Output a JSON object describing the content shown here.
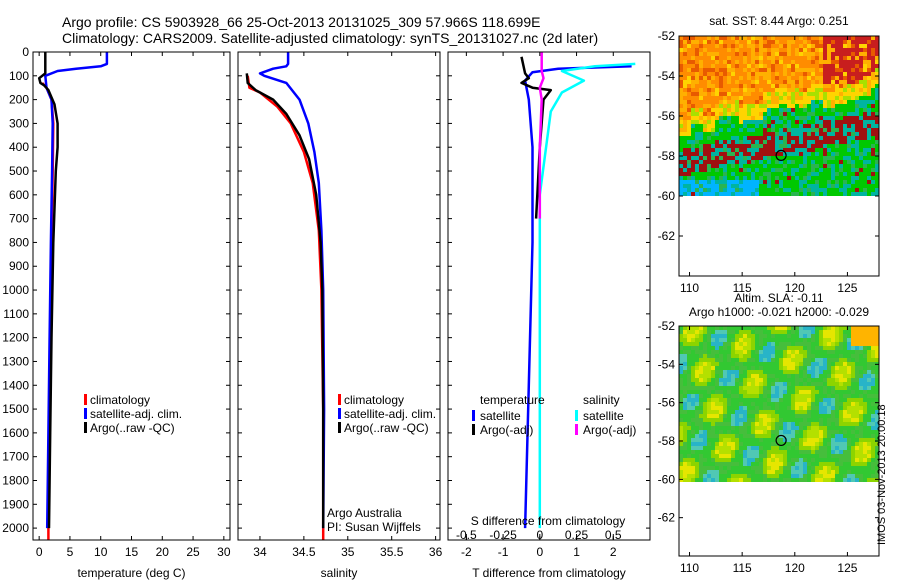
{
  "header": {
    "line1": "Argo profile: CS 5903928_66 25-Oct-2013 20131025_309 57.966S 118.699E",
    "line2": "Climatology: CARS2009. Satellite-adjusted climatology: synTS_20131027.nc (2d later)"
  },
  "colors": {
    "climatology": "#ff0000",
    "satellite_adj": "#0000ff",
    "argo": "#000000",
    "cyan": "#00ffff",
    "magenta": "#ff00ff"
  },
  "chart_data": [
    {
      "type": "line",
      "panel": "temperature",
      "xlabel": "temperature (deg C)",
      "x_ticks": [
        0,
        5,
        10,
        15,
        20,
        25,
        30
      ],
      "xlim": [
        -1,
        31
      ],
      "y_ticks": [
        0,
        100,
        200,
        300,
        400,
        500,
        600,
        700,
        800,
        900,
        1000,
        1100,
        1200,
        1300,
        1400,
        1500,
        1600,
        1700,
        1800,
        1900,
        2000
      ],
      "ylim": [
        2050,
        0
      ],
      "legend": [
        "climatology",
        "satellite-adj. clim.",
        "Argo(..raw -QC)"
      ],
      "series": [
        {
          "name": "climatology",
          "color": "#ff0000",
          "points": [
            [
              0.5,
              130
            ],
            [
              1.2,
              150
            ],
            [
              2,
              200
            ],
            [
              2.3,
              300
            ],
            [
              2.2,
              500
            ],
            [
              2.0,
              800
            ],
            [
              1.8,
              1200
            ],
            [
              1.6,
              1600
            ],
            [
              1.5,
              2000
            ],
            [
              1.5,
              2050
            ]
          ]
        },
        {
          "name": "satellite-adj. clim.",
          "color": "#0000ff",
          "points": [
            [
              11,
              0
            ],
            [
              11,
              50
            ],
            [
              10,
              60
            ],
            [
              6,
              70
            ],
            [
              3,
              80
            ],
            [
              1,
              100
            ],
            [
              1.2,
              150
            ],
            [
              2,
              200
            ],
            [
              2.2,
              300
            ],
            [
              2.1,
              500
            ],
            [
              1.9,
              800
            ],
            [
              1.7,
              1200
            ],
            [
              1.5,
              1600
            ],
            [
              1.3,
              2000
            ]
          ]
        },
        {
          "name": "Argo(..raw -QC)",
          "color": "#000000",
          "points": [
            [
              1,
              0
            ],
            [
              1,
              90
            ],
            [
              0,
              110
            ],
            [
              0.2,
              130
            ],
            [
              0.8,
              140
            ],
            [
              1.5,
              160
            ],
            [
              2.5,
              220
            ],
            [
              3,
              300
            ],
            [
              3,
              400
            ],
            [
              2.7,
              500
            ],
            [
              2.3,
              800
            ],
            [
              2.0,
              1200
            ],
            [
              1.8,
              1600
            ],
            [
              1.6,
              2000
            ]
          ]
        }
      ]
    },
    {
      "type": "line",
      "panel": "salinity",
      "xlabel": "salinity",
      "x_ticks": [
        34,
        34.5,
        35,
        35.5,
        36
      ],
      "x_tick_labels": [
        "34",
        "34.5",
        "35",
        "35.5",
        "36"
      ],
      "xlim": [
        33.75,
        36.05
      ],
      "ylim": [
        2050,
        0
      ],
      "legend": [
        "climatology",
        "satellite-adj. clim.",
        "Argo(..raw -QC)"
      ],
      "annotation": [
        "Argo Australia",
        "PI: Susan Wijffels"
      ],
      "series": [
        {
          "name": "climatology",
          "color": "#ff0000",
          "points": [
            [
              33.86,
              100
            ],
            [
              33.88,
              150
            ],
            [
              34.0,
              170
            ],
            [
              34.2,
              230
            ],
            [
              34.35,
              300
            ],
            [
              34.5,
              420
            ],
            [
              34.6,
              550
            ],
            [
              34.67,
              750
            ],
            [
              34.7,
              1000
            ],
            [
              34.72,
              1500
            ],
            [
              34.72,
              2050
            ]
          ]
        },
        {
          "name": "satellite-adj. clim.",
          "color": "#0000ff",
          "points": [
            [
              34.32,
              0
            ],
            [
              34.32,
              50
            ],
            [
              34.3,
              60
            ],
            [
              34.15,
              70
            ],
            [
              34.0,
              90
            ],
            [
              34.05,
              100
            ],
            [
              34.3,
              130
            ],
            [
              34.45,
              200
            ],
            [
              34.55,
              300
            ],
            [
              34.62,
              420
            ],
            [
              34.67,
              550
            ],
            [
              34.7,
              750
            ],
            [
              34.72,
              1000
            ],
            [
              34.73,
              1500
            ],
            [
              34.72,
              2000
            ]
          ]
        },
        {
          "name": "Argo(..raw -QC)",
          "color": "#000000",
          "points": [
            [
              33.85,
              90
            ],
            [
              33.86,
              130
            ],
            [
              33.95,
              160
            ],
            [
              34.15,
              200
            ],
            [
              34.3,
              260
            ],
            [
              34.45,
              350
            ],
            [
              34.56,
              450
            ],
            [
              34.64,
              600
            ],
            [
              34.69,
              800
            ],
            [
              34.71,
              1000
            ],
            [
              34.72,
              1500
            ],
            [
              34.72,
              2000
            ]
          ]
        }
      ]
    },
    {
      "type": "line",
      "panel": "difference",
      "xlabel": "T difference from climatology",
      "toplabel": "S difference from climatology",
      "x_ticks": [
        -2,
        -1,
        0,
        1,
        2
      ],
      "xlim": [
        -2.5,
        3
      ],
      "s_ticks": [
        -0.5,
        -0.25,
        0,
        0.25,
        0.5
      ],
      "s_tick_labels": [
        "-0.5",
        "-0.25",
        "0",
        "0.25",
        "0.5"
      ],
      "ylim": [
        2050,
        0
      ],
      "legend_temperature_title": "temperature",
      "legend_salinity_title": "salinity",
      "legend": [
        "satellite",
        "Argo(-adj)",
        "satellite",
        "Argo(-adj)"
      ],
      "series": [
        {
          "name": "temperature satellite",
          "color": "#0000ff",
          "points": [
            [
              2.5,
              60
            ],
            [
              1.5,
              65
            ],
            [
              0.5,
              70
            ],
            [
              -0.2,
              85
            ],
            [
              -0.4,
              120
            ],
            [
              -0.3,
              200
            ],
            [
              -0.2,
              400
            ],
            [
              -0.2,
              800
            ],
            [
              -0.3,
              1400
            ],
            [
              -0.4,
              2000
            ]
          ]
        },
        {
          "name": "temperature Argo(-adj)",
          "color": "#000000",
          "points": [
            [
              -0.5,
              20
            ],
            [
              -0.4,
              90
            ],
            [
              -0.3,
              110
            ],
            [
              -0.5,
              130
            ],
            [
              -0.2,
              150
            ],
            [
              0.3,
              160
            ],
            [
              0.1,
              200
            ],
            [
              0.0,
              400
            ],
            [
              -0.1,
              700
            ]
          ]
        },
        {
          "name": "salinity satellite",
          "color": "#00ffff",
          "points": [
            [
              2.6,
              50
            ],
            [
              1.5,
              60
            ],
            [
              0.6,
              80
            ],
            [
              1.2,
              120
            ],
            [
              0.6,
              170
            ],
            [
              0.3,
              250
            ],
            [
              0.0,
              600
            ],
            [
              0.0,
              1200
            ],
            [
              0.0,
              2000
            ]
          ]
        },
        {
          "name": "salinity Argo(-adj)",
          "color": "#ff00ff",
          "points": [
            [
              0.05,
              0
            ],
            [
              0.05,
              80
            ],
            [
              0.1,
              110
            ],
            [
              0.0,
              150
            ],
            [
              0.05,
              200
            ],
            [
              0.0,
              400
            ],
            [
              0.0,
              700
            ]
          ]
        }
      ]
    },
    {
      "type": "heatmap",
      "panel": "sst_map",
      "title": "sat. SST: 8.44 Argo: 0.251",
      "x_ticks": [
        110,
        115,
        120,
        125
      ],
      "y_ticks": [
        -52,
        -54,
        -56,
        -58,
        -60,
        -62
      ],
      "xlim": [
        109,
        128
      ],
      "ylim": [
        -64,
        -52
      ],
      "marker": {
        "lon": 118.7,
        "lat": -57.97
      }
    },
    {
      "type": "heatmap",
      "panel": "sla_map",
      "title": "Altim. SLA: -0.11",
      "subtitle": "Argo h1000: -0.021 h2000: -0.029",
      "x_ticks": [
        110,
        115,
        120,
        125
      ],
      "y_ticks": [
        -52,
        -54,
        -56,
        -58,
        -60,
        -62
      ],
      "xlim": [
        109,
        128
      ],
      "ylim": [
        -64,
        -52
      ],
      "marker": {
        "lon": 118.7,
        "lat": -57.97
      }
    }
  ],
  "footer": {
    "stamp": "IMOS 03-Nov-2013 20:00:18"
  }
}
